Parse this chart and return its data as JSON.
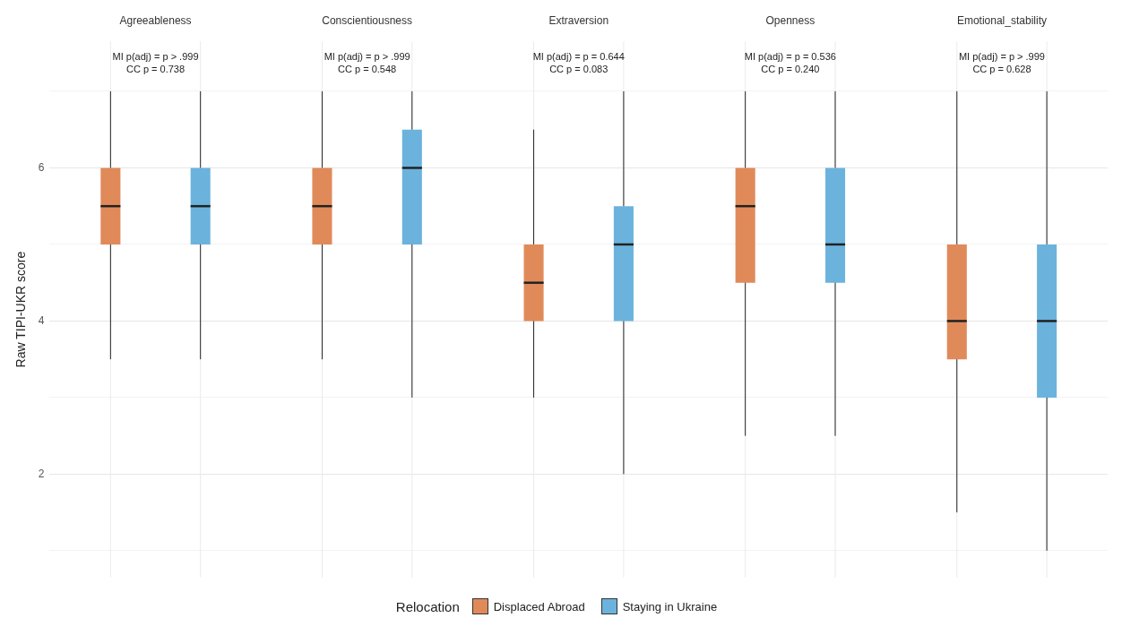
{
  "chart_data": {
    "type": "box",
    "ylabel": "Raw TIPI-UKR score",
    "categories": [
      "Agreeableness",
      "Conscientiousness",
      "Extraversion",
      "Openness",
      "Emotional_stability"
    ],
    "ylim": [
      0.65,
      7.65
    ],
    "yticks": [
      {
        "value": 1,
        "label": null
      },
      2,
      {
        "value": 3,
        "label": null
      },
      4,
      {
        "value": 5,
        "label": null
      },
      6,
      {
        "value": 7,
        "label": null
      }
    ],
    "grid": true,
    "legend": "bottom",
    "legend_title": "Relocation",
    "annotations": [
      "MI p(adj) = p > .999",
      "CC p = 0.738",
      "MI p(adj) = p > .999",
      "CC p = 0.548",
      "MI p(adj) = p = 0.644",
      "CC p = 0.083",
      "MI p(adj) = p = 0.536",
      "CC p = 0.240",
      "MI p(adj) = p > .999",
      "CC p = 0.628"
    ],
    "series": [
      {
        "name": "Displaced Abroad",
        "color": "#e08a5a",
        "boxes": [
          {
            "low": 3.5,
            "q1": 5,
            "median": 5.5,
            "q3": 6,
            "high": 7
          },
          {
            "low": 3.5,
            "q1": 5,
            "median": 5.5,
            "q3": 6,
            "high": 7
          },
          {
            "low": 3,
            "q1": 4,
            "median": 4.5,
            "q3": 5,
            "high": 6.5
          },
          {
            "low": 2.5,
            "q1": 4.5,
            "median": 5.5,
            "q3": 6,
            "high": 7
          },
          {
            "low": 1.5,
            "q1": 3.5,
            "median": 4,
            "q3": 5,
            "high": 7
          }
        ]
      },
      {
        "name": "Staying in Ukraine",
        "color": "#6bb3dd",
        "boxes": [
          {
            "low": 3.5,
            "q1": 5,
            "median": 5.5,
            "q3": 6,
            "high": 7
          },
          {
            "low": 3,
            "q1": 5,
            "median": 6,
            "q3": 6.5,
            "high": 7
          },
          {
            "low": 2,
            "q1": 4,
            "median": 5,
            "q3": 5.5,
            "high": 7
          },
          {
            "low": 2.5,
            "q1": 4.5,
            "median": 5,
            "q3": 6,
            "high": 7
          },
          {
            "low": 1,
            "q1": 3,
            "median": 4,
            "q3": 5,
            "high": 7
          }
        ]
      }
    ]
  }
}
